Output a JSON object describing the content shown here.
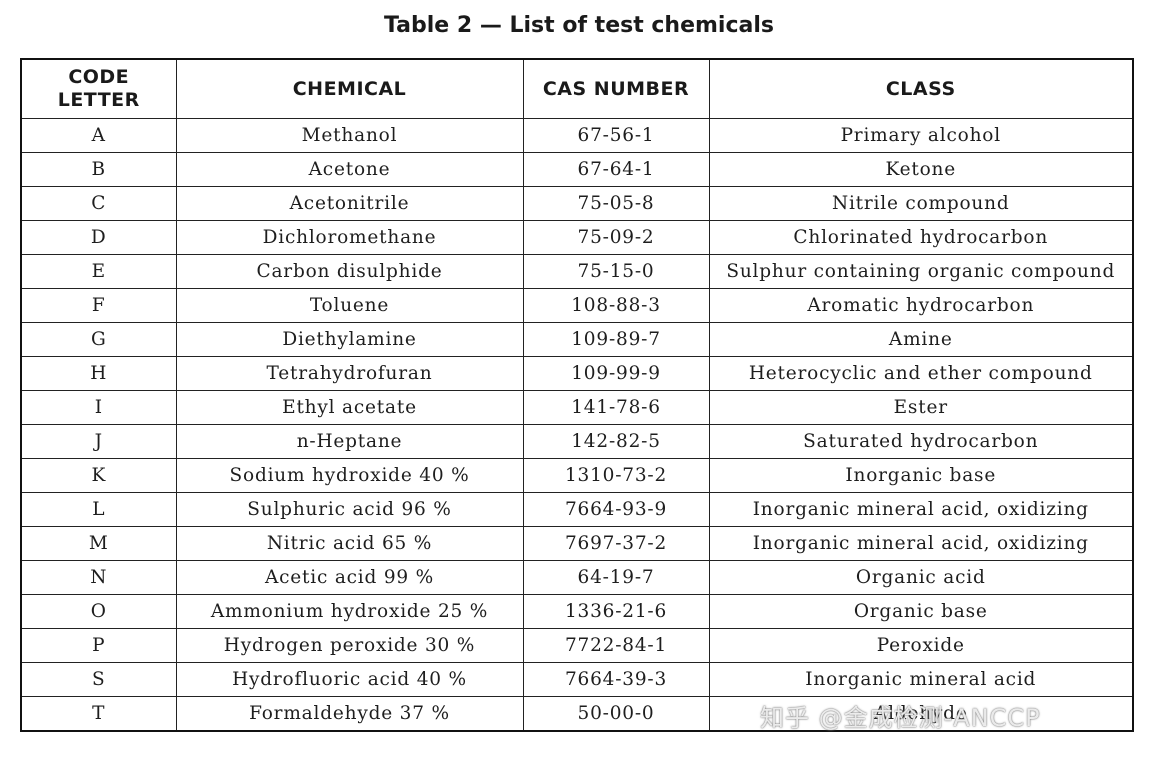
{
  "caption": "Table 2 — List of test chemicals",
  "headers": {
    "code_letter_line1": "CODE",
    "code_letter_line2": "LETTER",
    "chemical": "CHEMICAL",
    "cas_number": "CAS NUMBER",
    "class": "CLASS"
  },
  "rows": [
    {
      "code": "A",
      "chemical": "Methanol",
      "cas": "67-56-1",
      "class": "Primary alcohol"
    },
    {
      "code": "B",
      "chemical": "Acetone",
      "cas": "67-64-1",
      "class": "Ketone"
    },
    {
      "code": "C",
      "chemical": "Acetonitrile",
      "cas": "75-05-8",
      "class": "Nitrile compound"
    },
    {
      "code": "D",
      "chemical": "Dichloromethane",
      "cas": "75-09-2",
      "class": "Chlorinated hydrocarbon"
    },
    {
      "code": "E",
      "chemical": "Carbon disulphide",
      "cas": "75-15-0",
      "class": "Sulphur containing organic compound"
    },
    {
      "code": "F",
      "chemical": "Toluene",
      "cas": "108-88-3",
      "class": "Aromatic hydrocarbon"
    },
    {
      "code": "G",
      "chemical": "Diethylamine",
      "cas": "109-89-7",
      "class": "Amine"
    },
    {
      "code": "H",
      "chemical": "Tetrahydrofuran",
      "cas": "109-99-9",
      "class": "Heterocyclic and ether compound"
    },
    {
      "code": "I",
      "chemical": "Ethyl acetate",
      "cas": "141-78-6",
      "class": "Ester"
    },
    {
      "code": "J",
      "chemical": "n-Heptane",
      "cas": "142-82-5",
      "class": "Saturated hydrocarbon"
    },
    {
      "code": "K",
      "chemical": "Sodium hydroxide 40 %",
      "cas": "1310-73-2",
      "class": "Inorganic base"
    },
    {
      "code": "L",
      "chemical": "Sulphuric acid 96 %",
      "cas": "7664-93-9",
      "class": "Inorganic mineral acid, oxidizing"
    },
    {
      "code": "M",
      "chemical": "Nitric acid 65 %",
      "cas": "7697-37-2",
      "class": "Inorganic mineral acid, oxidizing"
    },
    {
      "code": "N",
      "chemical": "Acetic acid 99 %",
      "cas": "64-19-7",
      "class": "Organic acid"
    },
    {
      "code": "O",
      "chemical": "Ammonium hydroxide 25 %",
      "cas": "1336-21-6",
      "class": "Organic base"
    },
    {
      "code": "P",
      "chemical": "Hydrogen peroxide 30 %",
      "cas": "7722-84-1",
      "class": "Peroxide"
    },
    {
      "code": "S",
      "chemical": "Hydrofluoric acid 40 %",
      "cas": "7664-39-3",
      "class": "Inorganic mineral acid"
    },
    {
      "code": "T",
      "chemical": "Formaldehyde 37 %",
      "cas": "50-00-0",
      "class": "Aldehyde"
    }
  ],
  "watermark": "知乎 @金成检测-ANCCP"
}
